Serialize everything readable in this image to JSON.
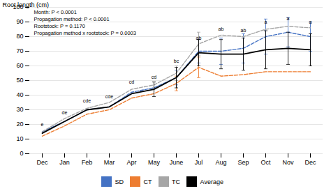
{
  "chart_data": {
    "type": "line",
    "categories": [
      "Dec",
      "Jan",
      "Feb",
      "Mar",
      "Apr",
      "May",
      "June",
      "Jul",
      "Aug",
      "Sep",
      "Oct",
      "Nov",
      "Dec"
    ],
    "series": [
      {
        "name": "SD",
        "color": "#4472C4",
        "line_style": "dashed",
        "values": [
          15,
          22,
          30,
          32,
          42,
          45,
          52,
          70,
          70,
          72,
          80,
          83,
          80
        ],
        "error": [
          null,
          null,
          null,
          null,
          null,
          null,
          5,
          8,
          9,
          10,
          12,
          10,
          10
        ]
      },
      {
        "name": "CT",
        "color": "#ED7D31",
        "line_style": "dashed",
        "values": [
          12,
          19,
          27,
          30,
          38,
          41,
          48,
          59,
          53,
          54,
          56,
          56,
          56
        ],
        "error": [
          null,
          null,
          null,
          null,
          null,
          null,
          5,
          7,
          null,
          null,
          null,
          null,
          null
        ]
      },
      {
        "name": "TC",
        "color": "#A6A6A6",
        "line_style": "dashed",
        "values": [
          15,
          24,
          31,
          35,
          44,
          47,
          55,
          75,
          81,
          80,
          85,
          87,
          86
        ],
        "error": [
          null,
          null,
          null,
          null,
          null,
          null,
          5,
          8,
          null,
          null,
          null,
          null,
          null
        ]
      },
      {
        "name": "Average",
        "color": "#000000",
        "line_style": "solid",
        "values": [
          14,
          22,
          30,
          32,
          41,
          44,
          52,
          69,
          68,
          68,
          71,
          72,
          71
        ],
        "error": [
          null,
          null,
          null,
          null,
          null,
          5,
          7,
          9,
          10,
          11,
          13,
          11,
          11
        ]
      }
    ],
    "annotations": [
      {
        "text": "e",
        "y": 19
      },
      {
        "text": "de",
        "y": 27
      },
      {
        "text": "cde",
        "y": 35
      },
      {
        "text": "cde",
        "y": 38
      },
      {
        "text": "cd",
        "y": 48
      },
      {
        "text": "cd",
        "y": 51
      },
      {
        "text": "bc",
        "y": 62
      },
      {
        "text": "ab",
        "y": 78
      },
      {
        "text": "ab",
        "y": 84
      },
      {
        "text": "ab",
        "y": 83
      },
      {
        "text": "a",
        "y": 89
      },
      {
        "text": "a",
        "y": 91
      },
      {
        "text": "a",
        "y": 89
      }
    ],
    "text_block": [
      "Month: P < 0.0001",
      "Propagation method: P < 0.0001",
      "Rootstock: P = 0.1170",
      "Propagation method x rootstock: P = 0.0003"
    ],
    "ylabel": "Root length (cm)",
    "ylim": [
      0,
      100
    ],
    "yticks": [
      0,
      10,
      20,
      30,
      40,
      50,
      60,
      70,
      80,
      90,
      100
    ],
    "grid": true,
    "legend": "bottom"
  }
}
